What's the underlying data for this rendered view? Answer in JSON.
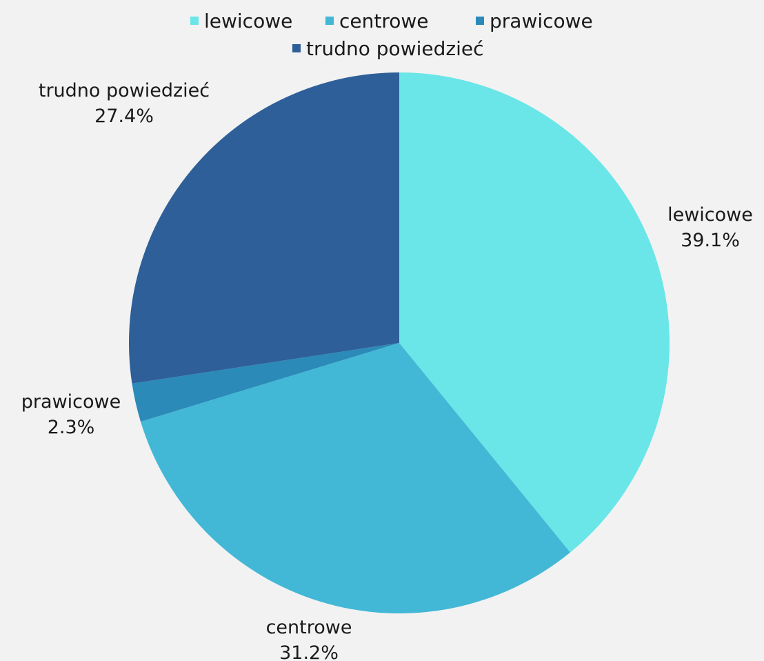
{
  "chart_data": {
    "type": "pie",
    "title": "",
    "legend_position": "top",
    "start_angle_deg": 0,
    "direction": "clockwise",
    "slices": [
      {
        "label": "lewicowe",
        "value": 39.1,
        "value_text": "39.1%",
        "color": "#6ae5e8"
      },
      {
        "label": "centrowe",
        "value": 31.2,
        "value_text": "31.2%",
        "color": "#42b8d6"
      },
      {
        "label": "prawicowe",
        "value": 2.3,
        "value_text": "2.3%",
        "color": "#2b8ab8"
      },
      {
        "label": "trudno powiedzieć",
        "value": 27.4,
        "value_text": "27.4%",
        "color": "#2e5f98"
      }
    ]
  }
}
